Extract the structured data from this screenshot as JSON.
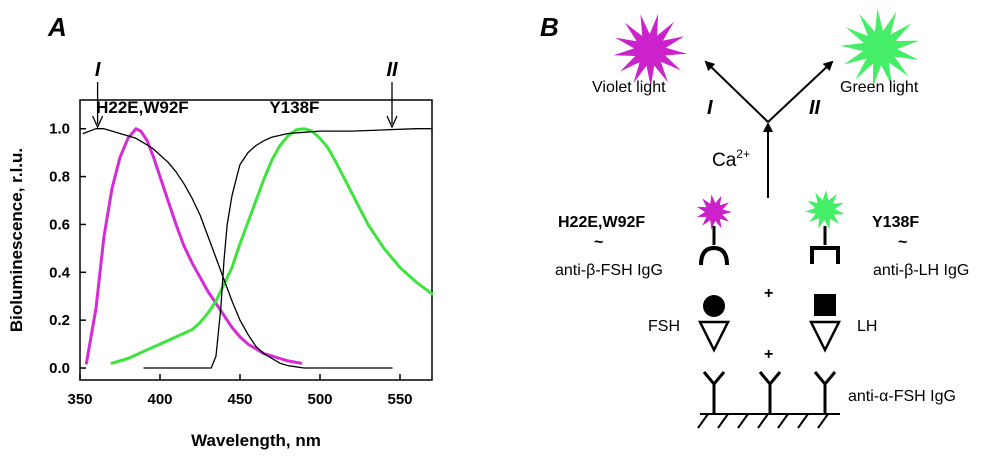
{
  "panels": {
    "a": "A",
    "b": "B"
  },
  "chart_data": {
    "type": "line",
    "xlabel": "Wavelength, nm",
    "ylabel": "Bioluminescence, r.l.u.",
    "xlim": [
      350,
      570
    ],
    "ylim": [
      -0.05,
      1.12
    ],
    "xticks": [
      350,
      400,
      450,
      500,
      550
    ],
    "yticks": [
      0.0,
      0.2,
      0.4,
      0.6,
      0.8,
      1.0
    ],
    "ytick_labels": [
      "0.0",
      "0.2",
      "0.4",
      "0.6",
      "0.8",
      "1.0"
    ],
    "grid": false,
    "series": [
      {
        "name": "H22E,W92F",
        "color": "#d62ad6",
        "x": [
          354,
          360,
          365,
          370,
          375,
          380,
          385,
          388,
          392,
          396,
          400,
          405,
          410,
          415,
          420,
          425,
          430,
          435,
          440,
          445,
          450,
          455,
          460,
          465,
          470,
          475,
          480,
          488
        ],
        "y": [
          0.02,
          0.25,
          0.55,
          0.75,
          0.88,
          0.96,
          1.0,
          0.99,
          0.95,
          0.88,
          0.8,
          0.7,
          0.6,
          0.51,
          0.44,
          0.38,
          0.32,
          0.27,
          0.22,
          0.17,
          0.13,
          0.1,
          0.08,
          0.06,
          0.05,
          0.04,
          0.03,
          0.02
        ]
      },
      {
        "name": "Y138F",
        "color": "#3ee43e",
        "x": [
          370,
          380,
          390,
          400,
          410,
          420,
          425,
          430,
          435,
          440,
          445,
          450,
          455,
          460,
          465,
          470,
          475,
          480,
          485,
          490,
          495,
          500,
          505,
          510,
          520,
          530,
          540,
          550,
          560,
          570
        ],
        "y": [
          0.02,
          0.04,
          0.07,
          0.1,
          0.13,
          0.16,
          0.19,
          0.23,
          0.28,
          0.35,
          0.42,
          0.52,
          0.61,
          0.7,
          0.79,
          0.87,
          0.93,
          0.97,
          0.995,
          1.0,
          0.99,
          0.96,
          0.92,
          0.86,
          0.73,
          0.6,
          0.5,
          0.42,
          0.36,
          0.31
        ]
      },
      {
        "name": "",
        "color": "#000000",
        "x": [
          352,
          360,
          365,
          370,
          375,
          380,
          385,
          390,
          395,
          400,
          405,
          410,
          415,
          420,
          425,
          430,
          435,
          440,
          445,
          450,
          455,
          460,
          465,
          470,
          475,
          480,
          485,
          490,
          500,
          520,
          545
        ],
        "y": [
          0.98,
          1.0,
          1.0,
          0.99,
          0.98,
          0.97,
          0.96,
          0.94,
          0.92,
          0.89,
          0.86,
          0.82,
          0.77,
          0.71,
          0.64,
          0.55,
          0.46,
          0.37,
          0.28,
          0.2,
          0.14,
          0.09,
          0.06,
          0.04,
          0.02,
          0.01,
          0.005,
          0.0,
          0.0,
          0.0,
          0.0
        ]
      },
      {
        "name": "",
        "color": "#000000",
        "x": [
          390,
          400,
          420,
          432,
          435,
          438,
          440,
          442,
          445,
          448,
          450,
          455,
          460,
          465,
          470,
          480,
          490,
          500,
          520,
          540,
          560,
          570
        ],
        "y": [
          0.0,
          0.0,
          0.0,
          0.0,
          0.05,
          0.25,
          0.45,
          0.6,
          0.72,
          0.8,
          0.85,
          0.9,
          0.93,
          0.95,
          0.965,
          0.98,
          0.985,
          0.99,
          0.99,
          0.995,
          1.0,
          1.0
        ]
      }
    ],
    "annotations": [
      {
        "text": "H22E,W92F",
        "x": 389,
        "y": 1.09
      },
      {
        "text": "Y138F",
        "x": 484,
        "y": 1.09
      },
      {
        "text": "I",
        "x": 361,
        "y": 1.26
      },
      {
        "text": "II",
        "x": 545,
        "y": 1.26
      }
    ],
    "arrows": [
      {
        "x": 361,
        "y_from": 1.22,
        "y_to": 1.0
      },
      {
        "x": 545,
        "y_from": 1.22,
        "y_to": 1.0
      }
    ]
  },
  "diagram": {
    "violet_light": "Violet light",
    "green_light": "Green light",
    "path_i": "I",
    "path_ii": "II",
    "calcium": "Ca",
    "calcium_sup": "2+",
    "left_name": "H22E,W92F",
    "right_name": "Y138F",
    "tilde": "~",
    "left_igg": "anti-β-FSH IgG",
    "right_igg": "anti-β-LH IgG",
    "plus": "+",
    "fsh": "FSH",
    "lh": "LH",
    "base_igg": "anti-α-FSH IgG",
    "violet_color": "#cc22cc",
    "green_color": "#44ee66"
  }
}
